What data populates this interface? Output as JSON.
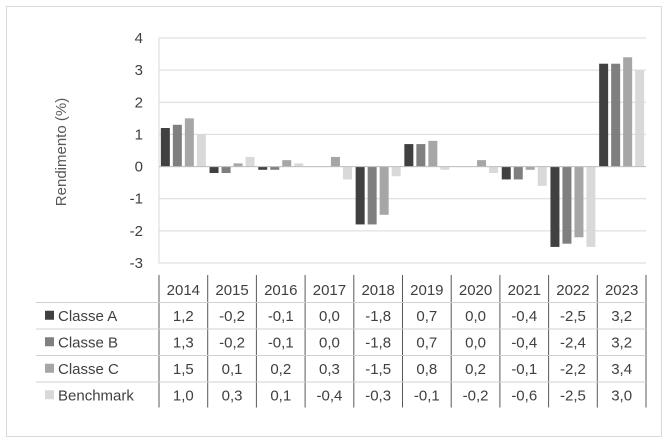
{
  "chart_data": {
    "type": "bar",
    "ylabel": "Rendimento (%)",
    "ylim": [
      -3,
      4
    ],
    "yticks": [
      "4",
      "3",
      "2",
      "1",
      "0",
      "-1",
      "-2",
      "-3"
    ],
    "categories": [
      "2014",
      "2015",
      "2016",
      "2017",
      "2018",
      "2019",
      "2020",
      "2021",
      "2022",
      "2023"
    ],
    "series": [
      {
        "name": "Classe A",
        "color": "#404040",
        "values": [
          1.2,
          -0.2,
          -0.1,
          0.0,
          -1.8,
          0.7,
          0.0,
          -0.4,
          -2.5,
          3.2
        ],
        "labels": [
          "1,2",
          "-0,2",
          "-0,1",
          "0,0",
          "-1,8",
          "0,7",
          "0,0",
          "-0,4",
          "-2,5",
          "3,2"
        ]
      },
      {
        "name": "Classe B",
        "color": "#7f7f7f",
        "values": [
          1.3,
          -0.2,
          -0.1,
          0.0,
          -1.8,
          0.7,
          0.0,
          -0.4,
          -2.4,
          3.2
        ],
        "labels": [
          "1,3",
          "-0,2",
          "-0,1",
          "0,0",
          "-1,8",
          "0,7",
          "0,0",
          "-0,4",
          "-2,4",
          "3,2"
        ]
      },
      {
        "name": "Classe C",
        "color": "#a6a6a6",
        "values": [
          1.5,
          0.1,
          0.2,
          0.3,
          -1.5,
          0.8,
          0.2,
          -0.1,
          -2.2,
          3.4
        ],
        "labels": [
          "1,5",
          "0,1",
          "0,2",
          "0,3",
          "-1,5",
          "0,8",
          "0,2",
          "-0,1",
          "-2,2",
          "3,4"
        ]
      },
      {
        "name": "Benchmark",
        "color": "#d9d9d9",
        "values": [
          1.0,
          0.3,
          0.1,
          -0.4,
          -0.3,
          -0.1,
          -0.2,
          -0.6,
          -2.5,
          3.0
        ],
        "labels": [
          "1,0",
          "0,3",
          "0,1",
          "-0,4",
          "-0,3",
          "-0,1",
          "-0,2",
          "-0,6",
          "-2,5",
          "3,0"
        ]
      }
    ],
    "grid": true,
    "legend": "data-table"
  }
}
